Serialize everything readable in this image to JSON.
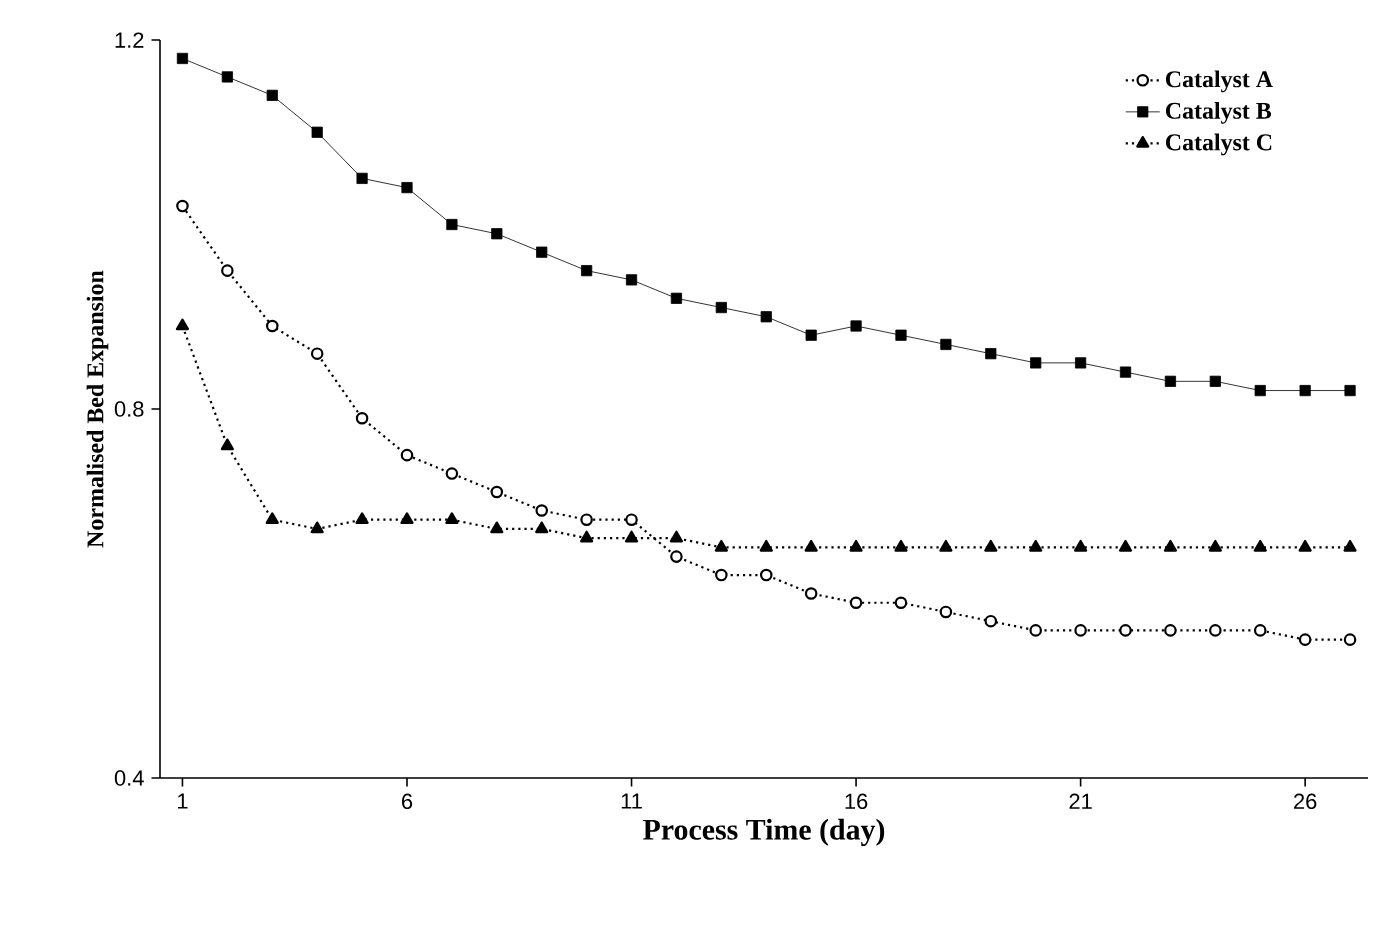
{
  "chart_data": {
    "type": "line",
    "xlabel": "Process Time (day)",
    "ylabel": "Normalised Bed Expansion",
    "x": [
      1,
      2,
      3,
      4,
      5,
      6,
      7,
      8,
      9,
      10,
      11,
      12,
      13,
      14,
      15,
      16,
      17,
      18,
      19,
      20,
      21,
      22,
      23,
      24,
      25,
      26,
      27
    ],
    "series": [
      {
        "name": "Catalyst A",
        "color": "#000000",
        "marker": "circle",
        "line_style": "dotted",
        "values": [
          1.02,
          0.95,
          0.89,
          0.86,
          0.79,
          0.75,
          0.73,
          0.71,
          0.69,
          0.68,
          0.68,
          0.64,
          0.62,
          0.62,
          0.6,
          0.59,
          0.59,
          0.58,
          0.57,
          0.56,
          0.56,
          0.56,
          0.56,
          0.56,
          0.56,
          0.55,
          0.55
        ]
      },
      {
        "name": "Catalyst B",
        "color": "#000000",
        "marker": "square",
        "line_style": "solid",
        "values": [
          1.18,
          1.16,
          1.14,
          1.1,
          1.05,
          1.04,
          1.0,
          0.99,
          0.97,
          0.95,
          0.94,
          0.92,
          0.91,
          0.9,
          0.88,
          0.89,
          0.88,
          0.87,
          0.86,
          0.85,
          0.85,
          0.84,
          0.83,
          0.83,
          0.82,
          0.82,
          0.82
        ]
      },
      {
        "name": "Catalyst C",
        "color": "#000000",
        "marker": "triangle",
        "line_style": "dotted",
        "values": [
          0.89,
          0.76,
          0.68,
          0.67,
          0.68,
          0.68,
          0.68,
          0.67,
          0.67,
          0.66,
          0.66,
          0.66,
          0.65,
          0.65,
          0.65,
          0.65,
          0.65,
          0.65,
          0.65,
          0.65,
          0.65,
          0.65,
          0.65,
          0.65,
          0.65,
          0.65,
          0.65
        ]
      }
    ],
    "xlim": [
      0.5,
      27.4
    ],
    "xticks": [
      1,
      6,
      11,
      16,
      21,
      26
    ],
    "ylim": [
      0.4,
      1.2
    ],
    "yticks": [
      0.4,
      0.8,
      1.2
    ],
    "grid": false,
    "legend": "top right"
  }
}
